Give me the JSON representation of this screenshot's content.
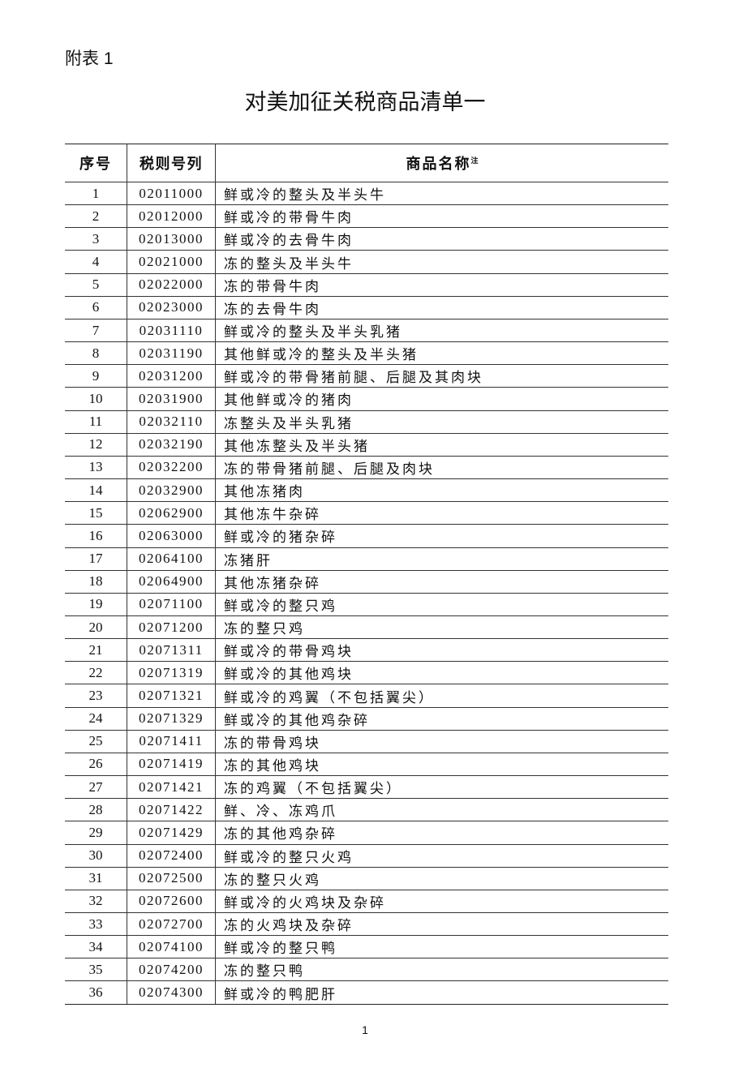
{
  "annex_label": "附表 1",
  "title": "对美加征关税商品清单一",
  "table": {
    "headers": {
      "seq": "序号",
      "code": "税则号列",
      "name": "商品名称",
      "name_note": "注"
    },
    "rows": [
      [
        "1",
        "02011000",
        "鲜或冷的整头及半头牛"
      ],
      [
        "2",
        "02012000",
        "鲜或冷的带骨牛肉"
      ],
      [
        "3",
        "02013000",
        "鲜或冷的去骨牛肉"
      ],
      [
        "4",
        "02021000",
        "冻的整头及半头牛"
      ],
      [
        "5",
        "02022000",
        "冻的带骨牛肉"
      ],
      [
        "6",
        "02023000",
        "冻的去骨牛肉"
      ],
      [
        "7",
        "02031110",
        "鲜或冷的整头及半头乳猪"
      ],
      [
        "8",
        "02031190",
        "其他鲜或冷的整头及半头猪"
      ],
      [
        "9",
        "02031200",
        "鲜或冷的带骨猪前腿、后腿及其肉块"
      ],
      [
        "10",
        "02031900",
        "其他鲜或冷的猪肉"
      ],
      [
        "11",
        "02032110",
        "冻整头及半头乳猪"
      ],
      [
        "12",
        "02032190",
        "其他冻整头及半头猪"
      ],
      [
        "13",
        "02032200",
        "冻的带骨猪前腿、后腿及肉块"
      ],
      [
        "14",
        "02032900",
        "其他冻猪肉"
      ],
      [
        "15",
        "02062900",
        "其他冻牛杂碎"
      ],
      [
        "16",
        "02063000",
        "鲜或冷的猪杂碎"
      ],
      [
        "17",
        "02064100",
        "冻猪肝"
      ],
      [
        "18",
        "02064900",
        "其他冻猪杂碎"
      ],
      [
        "19",
        "02071100",
        "鲜或冷的整只鸡"
      ],
      [
        "20",
        "02071200",
        "冻的整只鸡"
      ],
      [
        "21",
        "02071311",
        "鲜或冷的带骨鸡块"
      ],
      [
        "22",
        "02071319",
        "鲜或冷的其他鸡块"
      ],
      [
        "23",
        "02071321",
        "鲜或冷的鸡翼（不包括翼尖）"
      ],
      [
        "24",
        "02071329",
        "鲜或冷的其他鸡杂碎"
      ],
      [
        "25",
        "02071411",
        "冻的带骨鸡块"
      ],
      [
        "26",
        "02071419",
        "冻的其他鸡块"
      ],
      [
        "27",
        "02071421",
        "冻的鸡翼（不包括翼尖）"
      ],
      [
        "28",
        "02071422",
        "鲜、冷、冻鸡爪"
      ],
      [
        "29",
        "02071429",
        "冻的其他鸡杂碎"
      ],
      [
        "30",
        "02072400",
        "鲜或冷的整只火鸡"
      ],
      [
        "31",
        "02072500",
        "冻的整只火鸡"
      ],
      [
        "32",
        "02072600",
        "鲜或冷的火鸡块及杂碎"
      ],
      [
        "33",
        "02072700",
        "冻的火鸡块及杂碎"
      ],
      [
        "34",
        "02074100",
        "鲜或冷的整只鸭"
      ],
      [
        "35",
        "02074200",
        "冻的整只鸭"
      ],
      [
        "36",
        "02074300",
        "鲜或冷的鸭肥肝"
      ]
    ]
  },
  "page_number": "1"
}
